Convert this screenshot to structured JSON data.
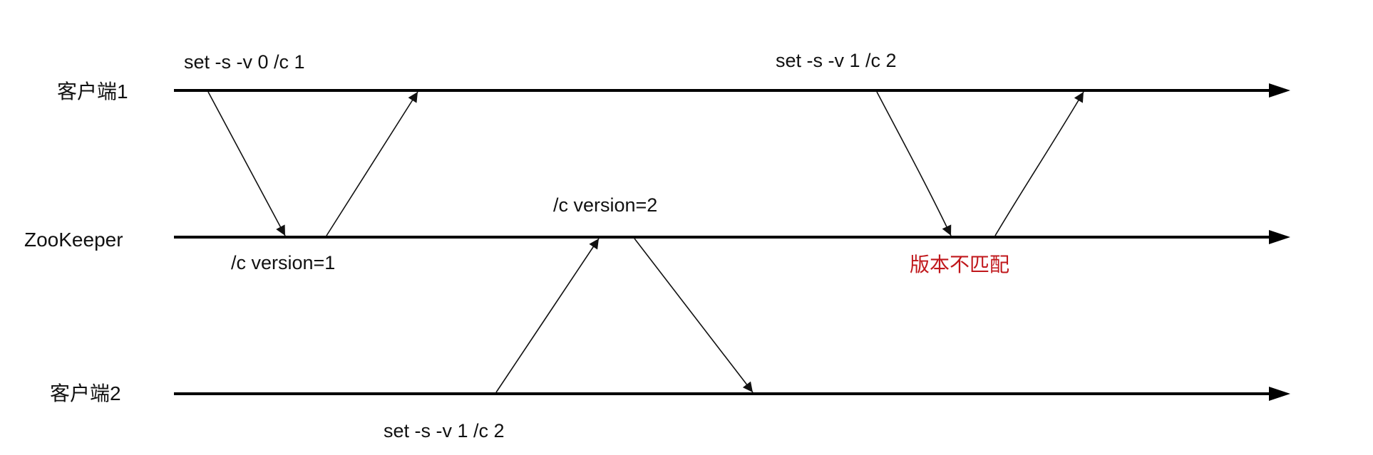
{
  "lanes": {
    "client1": "客户端1",
    "zookeeper": "ZooKeeper",
    "client2": "客户端2"
  },
  "labels": {
    "client1_set_v0": "set -s -v 0  /c 1",
    "client1_set_v1": "set -s -v 1  /c 2",
    "zk_version1": "/c version=1",
    "zk_version2": "/c version=2",
    "client2_set_v1": "set -s -v 1  /c 2",
    "version_mismatch": "版本不匹配"
  },
  "colors": {
    "line": "#000000",
    "text": "#111111",
    "warning": "#c0171b"
  }
}
